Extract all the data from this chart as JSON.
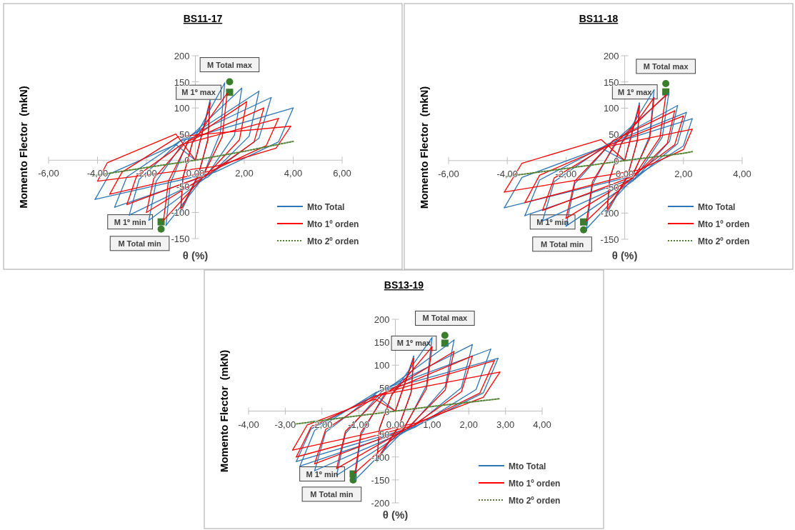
{
  "chart_data": [
    {
      "type": "line",
      "title": "BS11-17",
      "xlabel": "θ (%)",
      "ylabel": "Momento Flector  (mkN)",
      "legend": "bottom right",
      "grid": false,
      "marker": "none",
      "xlim": [
        -6,
        6
      ],
      "xticks": [
        {
          "value": -6,
          "label": "-6,00"
        },
        {
          "value": -4,
          "label": "-4,00"
        },
        {
          "value": -2,
          "label": "-2,00"
        },
        {
          "value": 0,
          "label": "0,00"
        },
        {
          "value": 2,
          "label": "2,00"
        },
        {
          "value": 4,
          "label": "4,00"
        },
        {
          "value": 6,
          "label": "6,00"
        }
      ],
      "ylim": [
        -150,
        200
      ],
      "yticks": [
        -150,
        -100,
        -50,
        0,
        50,
        100,
        150,
        200
      ],
      "series": [
        {
          "name": "Mto Total",
          "color": "#2e75b6",
          "type": "line",
          "x": [
            0,
            0.6
          ],
          "values": [
            0,
            115
          ]
        },
        {
          "color": "#2e75b6",
          "x": [
            -0.6,
            0.12,
            0.51,
            0.6
          ],
          "values": [
            -100,
            -30,
            40,
            115
          ]
        },
        {
          "color": "#2e75b6",
          "x": [
            -0.6,
            -0.51,
            -0.12,
            1.2
          ],
          "values": [
            -100,
            -35,
            35,
            148
          ]
        },
        {
          "color": "#2e75b6",
          "x": [
            -1.2,
            0.24,
            1.02,
            1.2
          ],
          "values": [
            -125,
            -38,
            52,
            148
          ]
        },
        {
          "color": "#2e75b6",
          "x": [
            -1.2,
            -1.02,
            -0.24,
            1.9
          ],
          "values": [
            -125,
            -44,
            44,
            138
          ]
        },
        {
          "color": "#2e75b6",
          "x": [
            -1.9,
            0.38,
            1.6,
            1.9
          ],
          "values": [
            -115,
            -35,
            48,
            138
          ]
        },
        {
          "color": "#2e75b6",
          "x": [
            -1.9,
            -1.6,
            -0.38,
            2.6
          ],
          "values": [
            -115,
            -40,
            41,
            132
          ]
        },
        {
          "color": "#2e75b6",
          "x": [
            -2.7,
            0.52,
            2.2,
            2.6
          ],
          "values": [
            -105,
            -32,
            46,
            132
          ]
        },
        {
          "color": "#2e75b6",
          "x": [
            -2.7,
            -2.3,
            -0.54,
            3.1
          ],
          "values": [
            -105,
            -37,
            40,
            120
          ]
        },
        {
          "color": "#2e75b6",
          "x": [
            -3.3,
            0.62,
            2.6,
            3.1
          ],
          "values": [
            -90,
            -27,
            42,
            120
          ]
        },
        {
          "color": "#2e75b6",
          "x": [
            -3.3,
            -2.8,
            -0.66,
            4.0
          ],
          "values": [
            -90,
            -32,
            36,
            100
          ]
        },
        {
          "color": "#2e75b6",
          "x": [
            -4.1,
            0.8,
            3.4,
            4.0
          ],
          "values": [
            -75,
            -23,
            35,
            100
          ]
        },
        {
          "color": "#2e75b6",
          "x": [
            -4.1,
            -3.5,
            -0.8,
            0
          ],
          "values": [
            -75,
            -26,
            30,
            0
          ]
        },
        {
          "name": "Mto 1º orden",
          "color": "#ff0000",
          "type": "line",
          "x": [
            0,
            0.6
          ],
          "values": [
            0,
            110
          ]
        },
        {
          "color": "#ff0000",
          "x": [
            -0.6,
            0.12,
            0.51,
            0.6
          ],
          "values": [
            -95,
            -28,
            38,
            110
          ]
        },
        {
          "color": "#ff0000",
          "x": [
            -0.6,
            -0.51,
            -0.12,
            1.3
          ],
          "values": [
            -95,
            -33,
            33,
            128
          ]
        },
        {
          "color": "#ff0000",
          "x": [
            -1.3,
            0.26,
            1.1,
            1.3
          ],
          "values": [
            -115,
            -35,
            45,
            128
          ]
        },
        {
          "color": "#ff0000",
          "x": [
            -1.3,
            -1.1,
            -0.26,
            2.1
          ],
          "values": [
            -115,
            -40,
            38,
            112
          ]
        },
        {
          "color": "#ff0000",
          "x": [
            -2.0,
            0.42,
            1.8,
            2.1
          ],
          "values": [
            -100,
            -30,
            39,
            112
          ]
        },
        {
          "color": "#ff0000",
          "x": [
            -2.0,
            -1.7,
            -0.4,
            2.8
          ],
          "values": [
            -100,
            -35,
            34,
            100
          ]
        },
        {
          "color": "#ff0000",
          "x": [
            -2.8,
            0.56,
            2.4,
            2.8
          ],
          "values": [
            -85,
            -26,
            35,
            100
          ]
        },
        {
          "color": "#ff0000",
          "x": [
            -2.8,
            -2.4,
            -0.56,
            3.4
          ],
          "values": [
            -85,
            -30,
            30,
            80
          ]
        },
        {
          "color": "#ff0000",
          "x": [
            -3.5,
            0.68,
            2.9,
            3.4
          ],
          "values": [
            -65,
            -20,
            28,
            80
          ]
        },
        {
          "color": "#ff0000",
          "x": [
            -3.5,
            -3.0,
            -0.7,
            3.9
          ],
          "values": [
            -65,
            -23,
            45,
            65
          ]
        },
        {
          "color": "#ff0000",
          "x": [
            -4.0,
            0.8,
            3.3,
            3.9
          ],
          "values": [
            -40,
            -12,
            23,
            65
          ]
        },
        {
          "color": "#ff0000",
          "x": [
            -4.0,
            -3.6,
            -0.8,
            0
          ],
          "values": [
            -40,
            -5,
            50,
            0
          ]
        },
        {
          "name": "Mto 2º orden",
          "color": "#548235",
          "type": "line",
          "line_style": "dotted",
          "x": [
            -4.2,
            -2,
            0,
            2,
            4
          ],
          "values": [
            -30,
            -14,
            0,
            17,
            36
          ]
        },
        {
          "type": "scatter",
          "marker": "circle",
          "color": "#3a7d2c",
          "x": [
            1.4
          ],
          "values": [
            150
          ]
        },
        {
          "type": "scatter",
          "marker": "square",
          "color": "#3a7d2c",
          "x": [
            1.4
          ],
          "values": [
            130
          ]
        },
        {
          "type": "scatter",
          "marker": "square",
          "color": "#3a7d2c",
          "x": [
            -1.4
          ],
          "values": [
            -118
          ]
        },
        {
          "type": "scatter",
          "marker": "circle",
          "color": "#3a7d2c",
          "x": [
            -1.4
          ],
          "values": [
            -132
          ]
        }
      ],
      "annotations": [
        {
          "text": "M Total max",
          "x": 1.4,
          "y": 150
        },
        {
          "text": "M 1º max",
          "x": 1.4,
          "y": 130
        },
        {
          "text": "M 1º min",
          "x": -1.4,
          "y": -118
        },
        {
          "text": "M Total min",
          "x": -1.4,
          "y": -132
        }
      ]
    },
    {
      "type": "line",
      "title": "BS11-18",
      "xlabel": "θ (%)",
      "ylabel": "Momento Flector  (mkN)",
      "legend": "bottom right",
      "grid": false,
      "marker": "none",
      "xlim": [
        -6,
        4
      ],
      "xticks": [
        {
          "value": -6,
          "label": "-6,00"
        },
        {
          "value": -4,
          "label": "-4,00"
        },
        {
          "value": -2,
          "label": "-2,00"
        },
        {
          "value": 0,
          "label": "0,00"
        },
        {
          "value": 2,
          "label": "2,00"
        },
        {
          "value": 4,
          "label": "4,00"
        }
      ],
      "ylim": [
        -150,
        200
      ],
      "yticks": [
        -150,
        -100,
        -50,
        0,
        50,
        100,
        150,
        200
      ],
      "series": [
        {
          "name": "Mto Total",
          "color": "#2e75b6",
          "type": "line",
          "x": [
            0,
            0.5
          ],
          "values": [
            0,
            110
          ]
        },
        {
          "color": "#2e75b6",
          "x": [
            -0.6,
            0.1,
            0.43,
            0.5
          ],
          "values": [
            -100,
            -30,
            39,
            110
          ]
        },
        {
          "color": "#2e75b6",
          "x": [
            -0.6,
            -0.51,
            -0.12,
            1.0
          ],
          "values": [
            -100,
            -35,
            33,
            135
          ]
        },
        {
          "color": "#2e75b6",
          "x": [
            -1.3,
            0.2,
            0.85,
            1.0
          ],
          "values": [
            -130,
            -39,
            47,
            135
          ]
        },
        {
          "color": "#2e75b6",
          "x": [
            -1.3,
            -1.1,
            -0.26,
            1.5
          ],
          "values": [
            -130,
            -46,
            41,
            128
          ]
        },
        {
          "color": "#2e75b6",
          "x": [
            -2.0,
            0.3,
            1.28,
            1.5
          ],
          "values": [
            -125,
            -38,
            45,
            128
          ]
        },
        {
          "color": "#2e75b6",
          "x": [
            -2.0,
            -1.7,
            -0.4,
            1.8
          ],
          "values": [
            -125,
            -44,
            38,
            105
          ]
        },
        {
          "color": "#2e75b6",
          "x": [
            -2.8,
            0.36,
            1.53,
            1.8
          ],
          "values": [
            -115,
            -35,
            37,
            105
          ]
        },
        {
          "color": "#2e75b6",
          "x": [
            -2.8,
            -2.4,
            -0.56,
            2.1
          ],
          "values": [
            -115,
            -40,
            32,
            92
          ]
        },
        {
          "color": "#2e75b6",
          "x": [
            -3.4,
            0.42,
            1.8,
            2.1
          ],
          "values": [
            -105,
            -32,
            32,
            92
          ]
        },
        {
          "color": "#2e75b6",
          "x": [
            -3.4,
            -2.9,
            -0.68,
            2.3
          ],
          "values": [
            -105,
            -37,
            28,
            80
          ]
        },
        {
          "color": "#2e75b6",
          "x": [
            -4.1,
            0.46,
            2.0,
            2.3
          ],
          "values": [
            -90,
            -27,
            28,
            80
          ]
        },
        {
          "color": "#2e75b6",
          "x": [
            -4.1,
            -3.5,
            -0.8,
            0
          ],
          "values": [
            -90,
            -32,
            24,
            0
          ]
        },
        {
          "name": "Mto 1º orden",
          "color": "#ff0000",
          "type": "line",
          "x": [
            0,
            0.5
          ],
          "values": [
            0,
            105
          ]
        },
        {
          "color": "#ff0000",
          "x": [
            -0.6,
            0.1,
            0.43,
            0.5
          ],
          "values": [
            -95,
            -29,
            37,
            105
          ]
        },
        {
          "color": "#ff0000",
          "x": [
            -0.6,
            -0.51,
            -0.12,
            1.0
          ],
          "values": [
            -95,
            -33,
            32,
            120
          ]
        },
        {
          "color": "#ff0000",
          "x": [
            -1.3,
            0.2,
            0.85,
            1.0
          ],
          "values": [
            -115,
            -35,
            42,
            120
          ]
        },
        {
          "color": "#ff0000",
          "x": [
            -1.3,
            -1.1,
            -0.26,
            1.4
          ],
          "values": [
            -115,
            -40,
            36,
            125
          ]
        },
        {
          "color": "#ff0000",
          "x": [
            -2.0,
            0.28,
            1.2,
            1.4
          ],
          "values": [
            -110,
            -33,
            44,
            125
          ]
        },
        {
          "color": "#ff0000",
          "x": [
            -2.0,
            -1.7,
            -0.4,
            1.7
          ],
          "values": [
            -110,
            -39,
            38,
            95
          ]
        },
        {
          "color": "#ff0000",
          "x": [
            -2.8,
            0.34,
            1.45,
            1.7
          ],
          "values": [
            -95,
            -29,
            33,
            95
          ]
        },
        {
          "color": "#ff0000",
          "x": [
            -2.8,
            -2.4,
            -0.56,
            2.0
          ],
          "values": [
            -95,
            -33,
            29,
            85
          ]
        },
        {
          "color": "#ff0000",
          "x": [
            -3.4,
            0.4,
            1.7,
            2.0
          ],
          "values": [
            -80,
            -24,
            30,
            85
          ]
        },
        {
          "color": "#ff0000",
          "x": [
            -3.4,
            -2.9,
            -0.68,
            2.3
          ],
          "values": [
            -80,
            -28,
            26,
            60
          ]
        },
        {
          "color": "#ff0000",
          "x": [
            -4.1,
            0.46,
            2.0,
            2.3
          ],
          "values": [
            -60,
            -18,
            21,
            60
          ]
        },
        {
          "color": "#ff0000",
          "x": [
            -4.1,
            -3.5,
            -0.8,
            0
          ],
          "values": [
            -60,
            -5,
            40,
            0
          ]
        },
        {
          "name": "Mto 2º orden",
          "color": "#548235",
          "type": "line",
          "line_style": "dotted",
          "x": [
            -4.0,
            -2,
            0,
            2,
            2.3
          ],
          "values": [
            -30,
            -15,
            0,
            14,
            17
          ]
        },
        {
          "type": "scatter",
          "marker": "circle",
          "color": "#3a7d2c",
          "x": [
            1.4
          ],
          "values": [
            147
          ]
        },
        {
          "type": "scatter",
          "marker": "square",
          "color": "#3a7d2c",
          "x": [
            1.4
          ],
          "values": [
            131
          ]
        },
        {
          "type": "scatter",
          "marker": "square",
          "color": "#3a7d2c",
          "x": [
            -1.4
          ],
          "values": [
            -117
          ]
        },
        {
          "type": "scatter",
          "marker": "circle",
          "color": "#3a7d2c",
          "x": [
            -1.4
          ],
          "values": [
            -132
          ]
        }
      ],
      "annotations": [
        {
          "text": "M Total max",
          "x": 1.4,
          "y": 147
        },
        {
          "text": "M 1º max",
          "x": 1.4,
          "y": 131
        },
        {
          "text": "M 1º min",
          "x": -1.4,
          "y": -117
        },
        {
          "text": "M Total min",
          "x": -1.4,
          "y": -132
        }
      ]
    },
    {
      "type": "line",
      "title": "BS13-19",
      "xlabel": "θ (%)",
      "ylabel": "Momento Flector  (mkN)",
      "legend": "bottom right",
      "grid": false,
      "marker": "none",
      "xlim": [
        -4,
        4
      ],
      "xticks": [
        {
          "value": -4,
          "label": "-4,00"
        },
        {
          "value": -3,
          "label": "-3,00"
        },
        {
          "value": -2,
          "label": "-2,00"
        },
        {
          "value": -1,
          "label": "-1,00"
        },
        {
          "value": 0,
          "label": "0,00"
        },
        {
          "value": 1,
          "label": "1,00"
        },
        {
          "value": 2,
          "label": "2,00"
        },
        {
          "value": 3,
          "label": "3,00"
        },
        {
          "value": 4,
          "label": "4,00"
        }
      ],
      "ylim": [
        -200,
        200
      ],
      "yticks": [
        -200,
        -150,
        -100,
        -50,
        0,
        50,
        100,
        150,
        200
      ],
      "series": [
        {
          "name": "Mto Total",
          "color": "#2e75b6",
          "type": "line",
          "x": [
            0,
            0.5
          ],
          "values": [
            0,
            120
          ]
        },
        {
          "color": "#2e75b6",
          "x": [
            -0.5,
            0.1,
            0.43,
            0.5
          ],
          "values": [
            -110,
            -33,
            42,
            120
          ]
        },
        {
          "color": "#2e75b6",
          "x": [
            -0.5,
            -0.43,
            -0.1,
            1.0
          ],
          "values": [
            -110,
            -39,
            36,
            160
          ]
        },
        {
          "color": "#2e75b6",
          "x": [
            -1.1,
            0.2,
            0.85,
            1.0
          ],
          "values": [
            -150,
            -45,
            56,
            160
          ]
        },
        {
          "color": "#2e75b6",
          "x": [
            -1.1,
            -0.94,
            -0.22,
            1.6
          ],
          "values": [
            -150,
            -53,
            48,
            155
          ]
        },
        {
          "color": "#2e75b6",
          "x": [
            -1.6,
            0.32,
            1.36,
            1.6
          ],
          "values": [
            -140,
            -42,
            54,
            155
          ]
        },
        {
          "color": "#2e75b6",
          "x": [
            -1.6,
            -1.36,
            -0.32,
            2.1
          ],
          "values": [
            -140,
            -49,
            47,
            145
          ]
        },
        {
          "color": "#2e75b6",
          "x": [
            -2.2,
            0.42,
            1.8,
            2.1
          ],
          "values": [
            -130,
            -39,
            51,
            145
          ]
        },
        {
          "color": "#2e75b6",
          "x": [
            -2.2,
            -1.9,
            -0.44,
            2.6
          ],
          "values": [
            -130,
            -46,
            44,
            135
          ]
        },
        {
          "color": "#2e75b6",
          "x": [
            -2.6,
            0.52,
            2.2,
            2.6
          ],
          "values": [
            -120,
            -36,
            47,
            135
          ]
        },
        {
          "color": "#2e75b6",
          "x": [
            -2.6,
            -2.2,
            -0.52,
            2.8
          ],
          "values": [
            -120,
            -42,
            41,
            115
          ]
        },
        {
          "color": "#2e75b6",
          "x": [
            -2.7,
            0.56,
            2.4,
            2.8
          ],
          "values": [
            -110,
            -33,
            40,
            115
          ]
        },
        {
          "color": "#2e75b6",
          "x": [
            -2.7,
            -2.3,
            -0.54,
            0
          ],
          "values": [
            -110,
            -39,
            35,
            0
          ]
        },
        {
          "name": "Mto 1º orden",
          "color": "#ff0000",
          "type": "line",
          "x": [
            0,
            0.5
          ],
          "values": [
            0,
            115
          ]
        },
        {
          "color": "#ff0000",
          "x": [
            -0.5,
            0.1,
            0.43,
            0.5
          ],
          "values": [
            -105,
            -32,
            40,
            115
          ]
        },
        {
          "color": "#ff0000",
          "x": [
            -0.5,
            -0.43,
            -0.1,
            1.0
          ],
          "values": [
            -105,
            -37,
            35,
            140
          ]
        },
        {
          "color": "#ff0000",
          "x": [
            -1.1,
            0.2,
            0.85,
            1.0
          ],
          "values": [
            -135,
            -41,
            49,
            140
          ]
        },
        {
          "color": "#ff0000",
          "x": [
            -1.1,
            -0.94,
            -0.22,
            1.6
          ],
          "values": [
            -135,
            -47,
            42,
            130
          ]
        },
        {
          "color": "#ff0000",
          "x": [
            -1.6,
            0.32,
            1.36,
            1.6
          ],
          "values": [
            -125,
            -38,
            46,
            130
          ]
        },
        {
          "color": "#ff0000",
          "x": [
            -1.6,
            -1.36,
            -0.32,
            2.1
          ],
          "values": [
            -125,
            -44,
            39,
            120
          ]
        },
        {
          "color": "#ff0000",
          "x": [
            -2.2,
            0.42,
            1.8,
            2.1
          ],
          "values": [
            -115,
            -35,
            42,
            120
          ]
        },
        {
          "color": "#ff0000",
          "x": [
            -2.2,
            -1.9,
            -0.44,
            2.7
          ],
          "values": [
            -115,
            -40,
            36,
            110
          ]
        },
        {
          "color": "#ff0000",
          "x": [
            -2.7,
            0.54,
            2.3,
            2.7
          ],
          "values": [
            -100,
            -30,
            39,
            110
          ]
        },
        {
          "color": "#ff0000",
          "x": [
            -2.7,
            -2.3,
            -0.54,
            2.85
          ],
          "values": [
            -100,
            -35,
            33,
            85
          ]
        },
        {
          "color": "#ff0000",
          "x": [
            -2.8,
            0.57,
            2.4,
            2.85
          ],
          "values": [
            -85,
            -26,
            30,
            85
          ]
        },
        {
          "color": "#ff0000",
          "x": [
            -2.8,
            -2.4,
            -0.56,
            0
          ],
          "values": [
            -85,
            -30,
            26,
            0
          ]
        },
        {
          "name": "Mto 2º orden",
          "color": "#548235",
          "type": "line",
          "line_style": "dotted",
          "x": [
            -2.7,
            -1,
            0,
            1,
            2.85
          ],
          "values": [
            -28,
            -10,
            0,
            10,
            27
          ]
        },
        {
          "type": "scatter",
          "marker": "circle",
          "color": "#3a7d2c",
          "x": [
            1.35
          ],
          "values": [
            165
          ]
        },
        {
          "type": "scatter",
          "marker": "square",
          "color": "#3a7d2c",
          "x": [
            1.35
          ],
          "values": [
            148
          ]
        },
        {
          "type": "scatter",
          "marker": "square",
          "color": "#3a7d2c",
          "x": [
            -1.15
          ],
          "values": [
            -137
          ]
        },
        {
          "type": "scatter",
          "marker": "circle",
          "color": "#3a7d2c",
          "x": [
            -1.15
          ],
          "values": [
            -150
          ]
        }
      ],
      "annotations": [
        {
          "text": "M Total max",
          "x": 1.35,
          "y": 165
        },
        {
          "text": "M 1º max",
          "x": 1.35,
          "y": 148
        },
        {
          "text": "M 1º min",
          "x": -1.15,
          "y": -137
        },
        {
          "text": "M Total min",
          "x": -1.15,
          "y": -150
        }
      ]
    }
  ]
}
